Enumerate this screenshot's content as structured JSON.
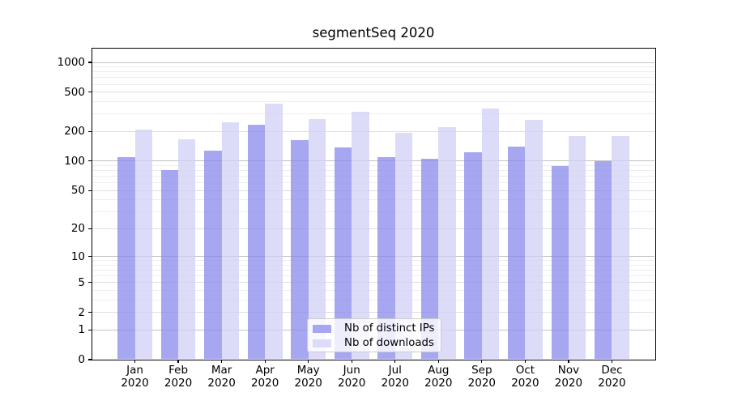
{
  "chart_data": {
    "type": "bar",
    "title": "segmentSeq 2020",
    "categories": [
      "Jan",
      "Feb",
      "Mar",
      "Apr",
      "May",
      "Jun",
      "Jul",
      "Aug",
      "Sep",
      "Oct",
      "Nov",
      "Dec"
    ],
    "x_tick_year": "2020",
    "series": [
      {
        "name": "Nb of distinct IPs",
        "color": "#a6a6f1",
        "values": [
          109,
          81,
          128,
          235,
          164,
          138,
          110,
          106,
          122,
          140,
          89,
          100
        ]
      },
      {
        "name": "Nb of downloads",
        "color": "#dcdcf8",
        "values": [
          210,
          165,
          250,
          385,
          268,
          315,
          195,
          221,
          340,
          262,
          180,
          178
        ]
      }
    ],
    "yscale": "log-like (log10(1+y))",
    "y_tick_values": [
      0,
      1,
      2,
      5,
      10,
      20,
      50,
      100,
      200,
      500,
      1000
    ],
    "y_tick_labels": [
      "0",
      "1",
      "2",
      "5",
      "10",
      "20",
      "50",
      "100",
      "200",
      "500",
      "1000"
    ],
    "ylim": [
      0,
      1400
    ],
    "grid": "horizontal major and minor gridlines",
    "legend": {
      "labels": [
        "Nb of distinct IPs",
        "Nb of downloads"
      ],
      "position": "lower center inside plot"
    }
  }
}
